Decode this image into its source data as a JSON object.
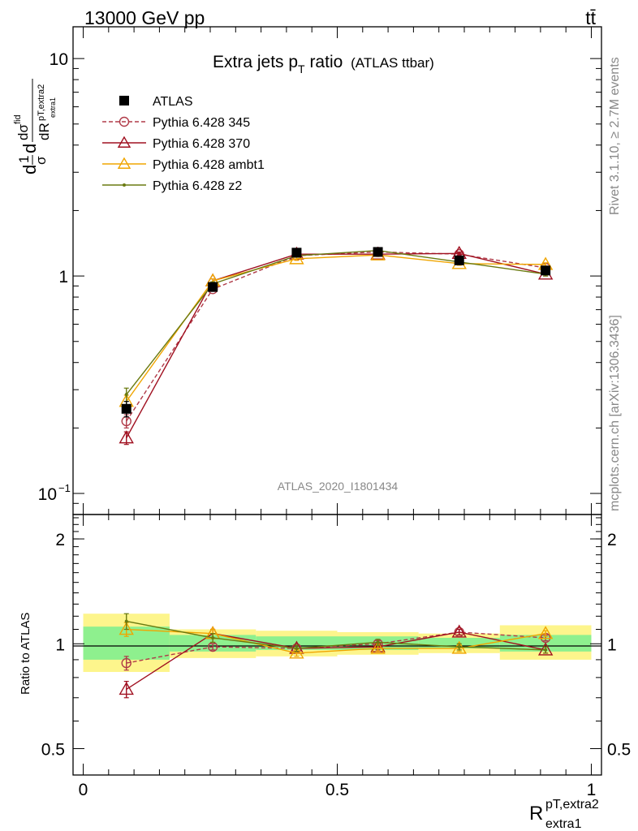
{
  "header": {
    "energy_label": "13000 GeV pp",
    "process_label": "tt̄"
  },
  "side_text": {
    "rivet_label": "Rivet 3.1.10, ≥ 2.7M events",
    "source_label": "mcplots.cern.ch [arXiv:1306.3436]"
  },
  "chart_data": [
    {
      "type": "line",
      "title": "Extra jets p_T ratio",
      "title_main": "Extra jets p",
      "title_sub": "T",
      "title_after": " ratio",
      "title_suffix": "(ATLAS ttbar)",
      "analysis_label": "ATLAS_2020_I1801434",
      "ylabel": "(1/σ) dσ^fid / dR^{pT,extra2}_{extra1}",
      "yscale": "log",
      "ylim": [
        0.08,
        14
      ],
      "xlim": [
        -0.02,
        1.02
      ],
      "y_ticks": [
        {
          "value": 0.1,
          "base": "10",
          "exp": "−1"
        },
        {
          "value": 1,
          "base": "1",
          "exp": ""
        },
        {
          "value": 10,
          "base": "10",
          "exp": ""
        }
      ],
      "legend_position": "top-left",
      "x": [
        0.085,
        0.255,
        0.42,
        0.58,
        0.74,
        0.91
      ],
      "series": [
        {
          "name": "ATLAS",
          "color": "#000000",
          "style": "data",
          "values": [
            0.245,
            0.89,
            1.28,
            1.29,
            1.18,
            1.06
          ],
          "err": [
            0.02,
            0.03,
            0.03,
            0.03,
            0.03,
            0.03
          ]
        },
        {
          "name": "Pythia 6.428 345",
          "color": "#b03a48",
          "style": "dashed",
          "marker": "circle",
          "values": [
            0.215,
            0.87,
            1.24,
            1.29,
            1.26,
            1.09
          ],
          "err": [
            0.015,
            0.02,
            0.02,
            0.02,
            0.02,
            0.02
          ]
        },
        {
          "name": "Pythia 6.428 370",
          "color": "#a01020",
          "style": "solid",
          "marker": "triangle",
          "values": [
            0.18,
            0.95,
            1.26,
            1.26,
            1.27,
            1.02
          ],
          "err": [
            0.012,
            0.02,
            0.02,
            0.02,
            0.02,
            0.02
          ]
        },
        {
          "name": "Pythia 6.428 ambt1",
          "color": "#f0a500",
          "style": "solid",
          "marker": "triangle",
          "values": [
            0.265,
            0.95,
            1.2,
            1.25,
            1.14,
            1.13
          ],
          "err": [
            0.018,
            0.02,
            0.02,
            0.02,
            0.02,
            0.02
          ]
        },
        {
          "name": "Pythia 6.428 z2",
          "color": "#6a7a10",
          "style": "solid",
          "marker": "dot",
          "values": [
            0.285,
            0.92,
            1.24,
            1.31,
            1.16,
            1.02
          ],
          "err": [
            0.02,
            0.02,
            0.02,
            0.02,
            0.02,
            0.02
          ]
        }
      ]
    },
    {
      "type": "line",
      "ylabel": "Ratio to ATLAS",
      "xlabel": "R",
      "xlabel_sup": "pT,extra2",
      "xlabel_sub": "extra1",
      "ylim": [
        0.42,
        2.35
      ],
      "xlim": [
        -0.02,
        1.02
      ],
      "y_ticks": [
        {
          "value": 0.5,
          "label": "0.5"
        },
        {
          "value": 1,
          "label": "1"
        },
        {
          "value": 2,
          "label": "2"
        }
      ],
      "x_ticks": [
        {
          "value": 0,
          "label": "0"
        },
        {
          "value": 0.5,
          "label": "0.5"
        },
        {
          "value": 1,
          "label": "1"
        }
      ],
      "bands": [
        {
          "x0": 0.0,
          "x1": 0.17,
          "green": [
            0.9,
            1.12
          ],
          "yellow": [
            0.83,
            1.22
          ]
        },
        {
          "x0": 0.17,
          "x1": 0.34,
          "green": [
            0.95,
            1.06
          ],
          "yellow": [
            0.91,
            1.1
          ]
        },
        {
          "x0": 0.34,
          "x1": 0.5,
          "green": [
            0.96,
            1.05
          ],
          "yellow": [
            0.92,
            1.09
          ]
        },
        {
          "x0": 0.5,
          "x1": 0.66,
          "green": [
            0.96,
            1.05
          ],
          "yellow": [
            0.93,
            1.08
          ]
        },
        {
          "x0": 0.66,
          "x1": 0.82,
          "green": [
            0.97,
            1.04
          ],
          "yellow": [
            0.94,
            1.07
          ]
        },
        {
          "x0": 0.82,
          "x1": 1.0,
          "green": [
            0.95,
            1.06
          ],
          "yellow": [
            0.9,
            1.13
          ]
        }
      ],
      "x": [
        0.085,
        0.255,
        0.42,
        0.58,
        0.74,
        0.91
      ],
      "series": [
        {
          "name": "Pythia 6.428 345",
          "color": "#b03a48",
          "style": "dashed",
          "marker": "circle",
          "values": [
            0.88,
            0.98,
            0.97,
            1.0,
            1.08,
            1.04
          ],
          "err": [
            0.04,
            0.02,
            0.02,
            0.02,
            0.02,
            0.02
          ]
        },
        {
          "name": "Pythia 6.428 370",
          "color": "#a01020",
          "style": "solid",
          "marker": "triangle",
          "values": [
            0.74,
            1.07,
            0.97,
            0.98,
            1.08,
            0.96
          ],
          "err": [
            0.04,
            0.03,
            0.02,
            0.02,
            0.02,
            0.02
          ]
        },
        {
          "name": "Pythia 6.428 ambt1",
          "color": "#f0a500",
          "style": "solid",
          "marker": "triangle",
          "values": [
            1.1,
            1.07,
            0.94,
            0.97,
            0.97,
            1.07
          ],
          "err": [
            0.05,
            0.03,
            0.02,
            0.02,
            0.02,
            0.02
          ]
        },
        {
          "name": "Pythia 6.428 z2",
          "color": "#6a7a10",
          "style": "solid",
          "marker": "dot",
          "values": [
            1.16,
            1.04,
            0.97,
            1.01,
            0.98,
            0.96
          ],
          "err": [
            0.06,
            0.03,
            0.02,
            0.02,
            0.02,
            0.02
          ]
        }
      ]
    }
  ]
}
